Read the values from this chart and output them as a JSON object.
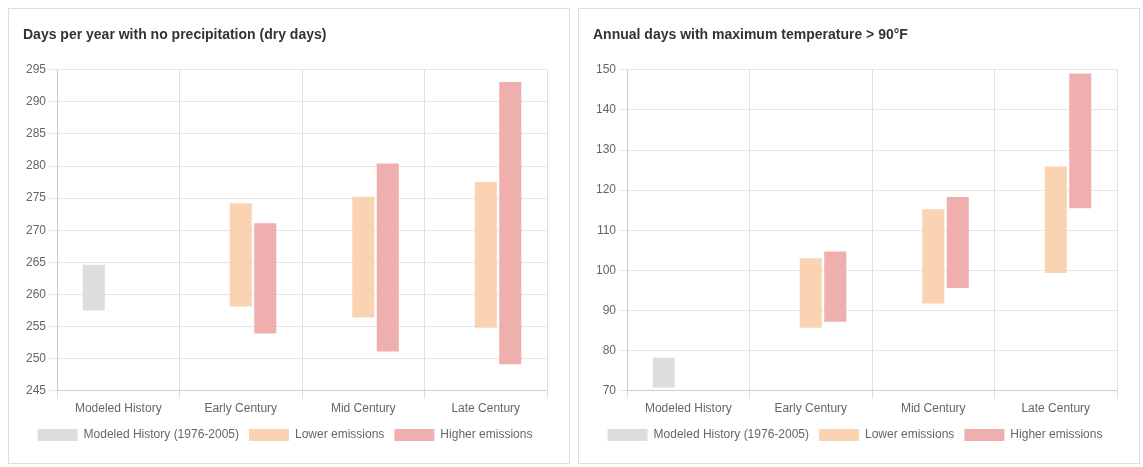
{
  "chart_data": [
    {
      "type": "bar",
      "title": "Days per year with no precipitation (dry days)",
      "categories": [
        "Modeled History",
        "Early Century",
        "Mid Century",
        "Late Century"
      ],
      "ylim": [
        245,
        295
      ],
      "yticks": [
        245,
        250,
        255,
        260,
        265,
        270,
        275,
        280,
        285,
        290,
        295
      ],
      "grid": true,
      "legend": "bottom",
      "series": [
        {
          "name": "Modeled History (1976-2005)",
          "color": "#dcdddf",
          "base": [
            257.5,
            null,
            null,
            null
          ],
          "values": [
            7.1,
            null,
            null,
            null
          ]
        },
        {
          "name": "Lower emissions",
          "color": "#fad3b3",
          "base": [
            null,
            258.1,
            256.4,
            254.8
          ],
          "values": [
            null,
            16.1,
            18.8,
            22.7
          ]
        },
        {
          "name": "Higher emissions",
          "color": "#eeafae",
          "base": [
            null,
            253.9,
            251.1,
            249.1
          ],
          "values": [
            null,
            17.2,
            29.3,
            44.0
          ]
        }
      ]
    },
    {
      "type": "bar",
      "title": "Annual days with maximum temperature > 90°F",
      "categories": [
        "Modeled History",
        "Early Century",
        "Mid Century",
        "Late Century"
      ],
      "ylim": [
        70,
        150
      ],
      "yticks": [
        70,
        80,
        90,
        100,
        110,
        120,
        130,
        140,
        150
      ],
      "grid": true,
      "legend": "bottom",
      "series": [
        {
          "name": "Modeled History (1976-2005)",
          "color": "#dcdddf",
          "base": [
            70.8,
            null,
            null,
            null
          ],
          "values": [
            7.4,
            null,
            null,
            null
          ]
        },
        {
          "name": "Lower emissions",
          "color": "#fad3b3",
          "base": [
            null,
            85.7,
            91.7,
            99.3
          ],
          "values": [
            null,
            17.3,
            23.5,
            26.6
          ]
        },
        {
          "name": "Higher emissions",
          "color": "#eeafae",
          "base": [
            null,
            87.2,
            95.6,
            115.5
          ],
          "values": [
            null,
            17.5,
            22.7,
            33.6
          ]
        }
      ]
    }
  ]
}
